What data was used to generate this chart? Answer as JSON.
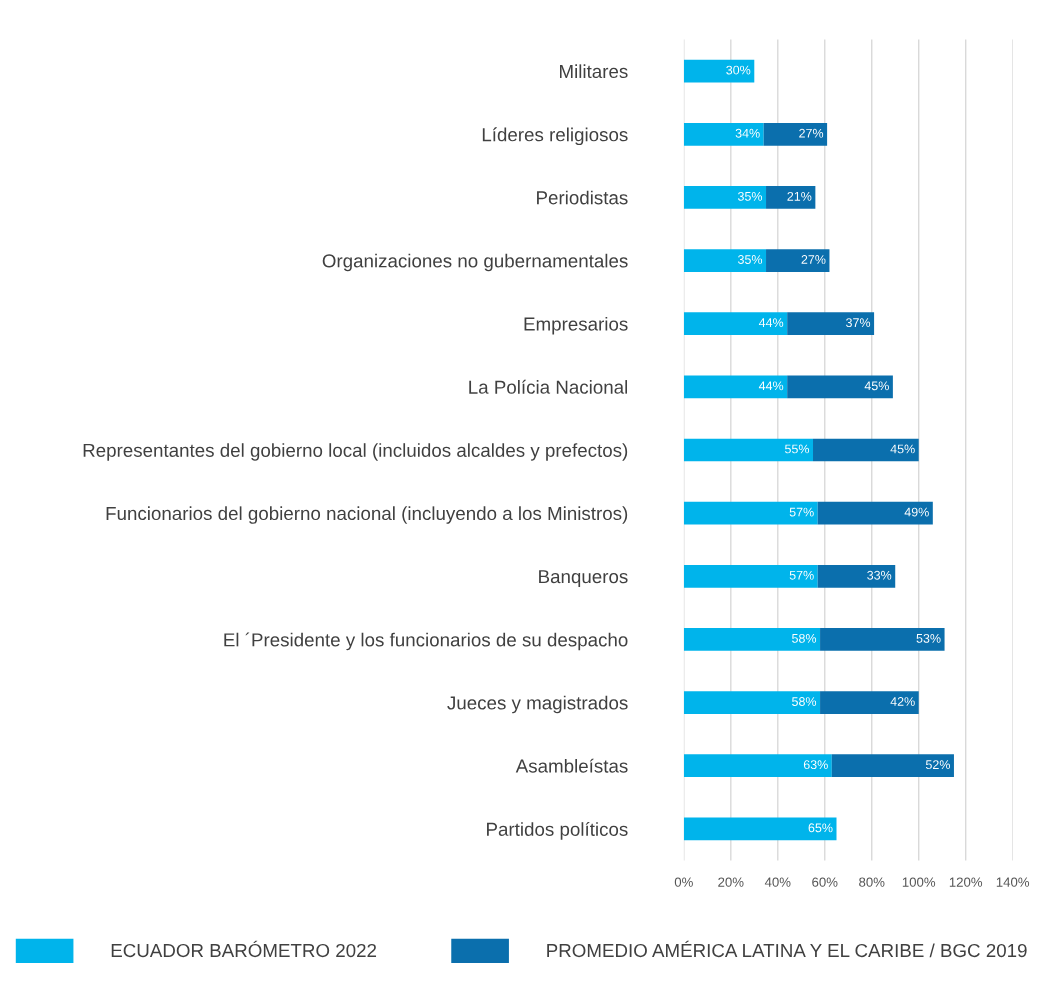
{
  "chart_data": {
    "type": "bar",
    "orientation": "horizontal",
    "stacked": true,
    "categories": [
      "Militares",
      "Líderes religiosos",
      "Periodistas",
      "Organizaciones no gubernamentales",
      "Empresarios",
      "La Polícia Nacional",
      "Representantes del gobierno local (incluidos alcaldes y prefectos)",
      "Funcionarios del gobierno nacional (incluyendo a los Ministros)",
      "Banqueros",
      "El ´Presidente y los funcionarios de su despacho",
      "Jueces y magistrados",
      "Asambleístas",
      "Partidos políticos"
    ],
    "series": [
      {
        "name": "ECUADOR BARÓMETRO 2022",
        "color": "#00b4eb",
        "values": [
          30,
          34,
          35,
          35,
          44,
          44,
          55,
          57,
          57,
          58,
          58,
          63,
          65
        ]
      },
      {
        "name": "PROMEDIO AMÉRICA LATINA Y EL CARIBE / BGC 2019",
        "color": "#0b6fad",
        "values": [
          null,
          27,
          21,
          27,
          37,
          45,
          45,
          49,
          33,
          53,
          42,
          52,
          null
        ]
      }
    ],
    "xlim": [
      0,
      140
    ],
    "xticks": [
      {
        "value": 0,
        "label": "0%"
      },
      {
        "value": 20,
        "label": "20%"
      },
      {
        "value": 40,
        "label": "40%"
      },
      {
        "value": 60,
        "label": "60%"
      },
      {
        "value": 80,
        "label": "80%"
      },
      {
        "value": 100,
        "label": "100%"
      },
      {
        "value": 120,
        "label": "120%"
      },
      {
        "value": 140,
        "label": "140%"
      }
    ],
    "value_labels": [
      [
        "30%",
        "34%",
        "35%",
        "35%",
        "44%",
        "44%",
        "55%",
        "57%",
        "57%",
        "58%",
        "58%",
        "63%",
        "65%"
      ],
      [
        null,
        "27%",
        "21%",
        "27%",
        "37%",
        "45%",
        "45%",
        "49%",
        "33%",
        "53%",
        "42%",
        "52%",
        null
      ]
    ],
    "grid": "x",
    "legend": "bottom"
  }
}
